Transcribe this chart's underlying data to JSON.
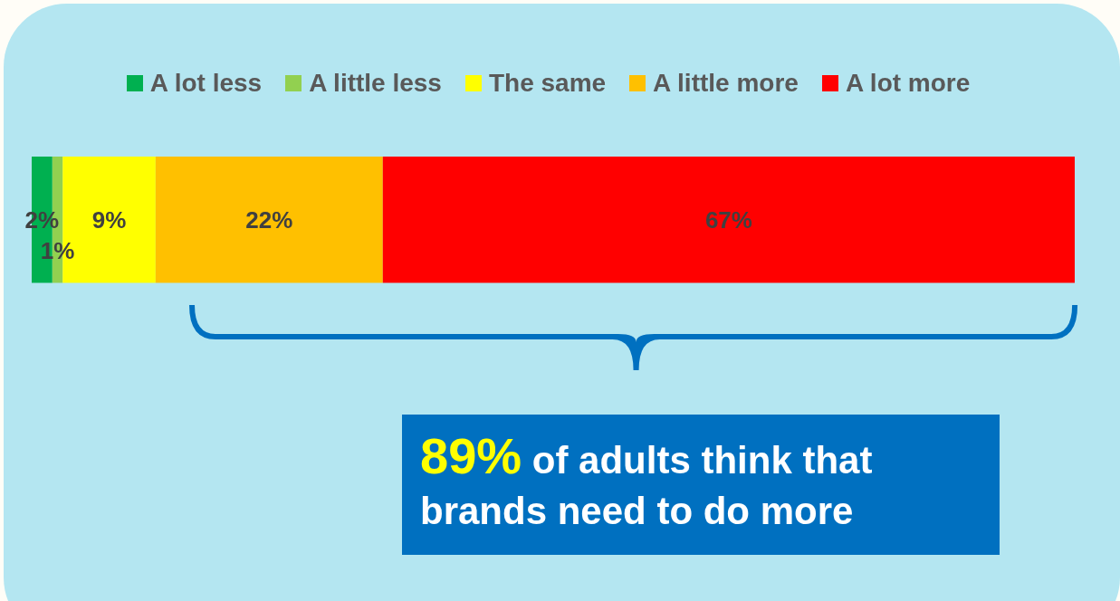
{
  "chart_data": {
    "type": "bar",
    "orientation": "horizontal",
    "stacked": true,
    "categories": [
      null
    ],
    "series": [
      {
        "name": "A lot less",
        "color": "#00b050",
        "values": [
          2
        ],
        "value_labels": [
          "2%"
        ]
      },
      {
        "name": "A little less",
        "color": "#92d050",
        "values": [
          1
        ],
        "value_labels": [
          "1%"
        ]
      },
      {
        "name": "The same",
        "color": "#ffff00",
        "values": [
          9
        ],
        "value_labels": [
          "9%"
        ]
      },
      {
        "name": "A little more",
        "color": "#ffc000",
        "values": [
          22
        ],
        "value_labels": [
          "22%"
        ]
      },
      {
        "name": "A lot more",
        "color": "#ff0000",
        "values": [
          67
        ],
        "value_labels": [
          "67%"
        ]
      }
    ],
    "legend": "top",
    "grid": false,
    "annotations": [
      "89% of adults think that brands need to do more"
    ]
  }
}
